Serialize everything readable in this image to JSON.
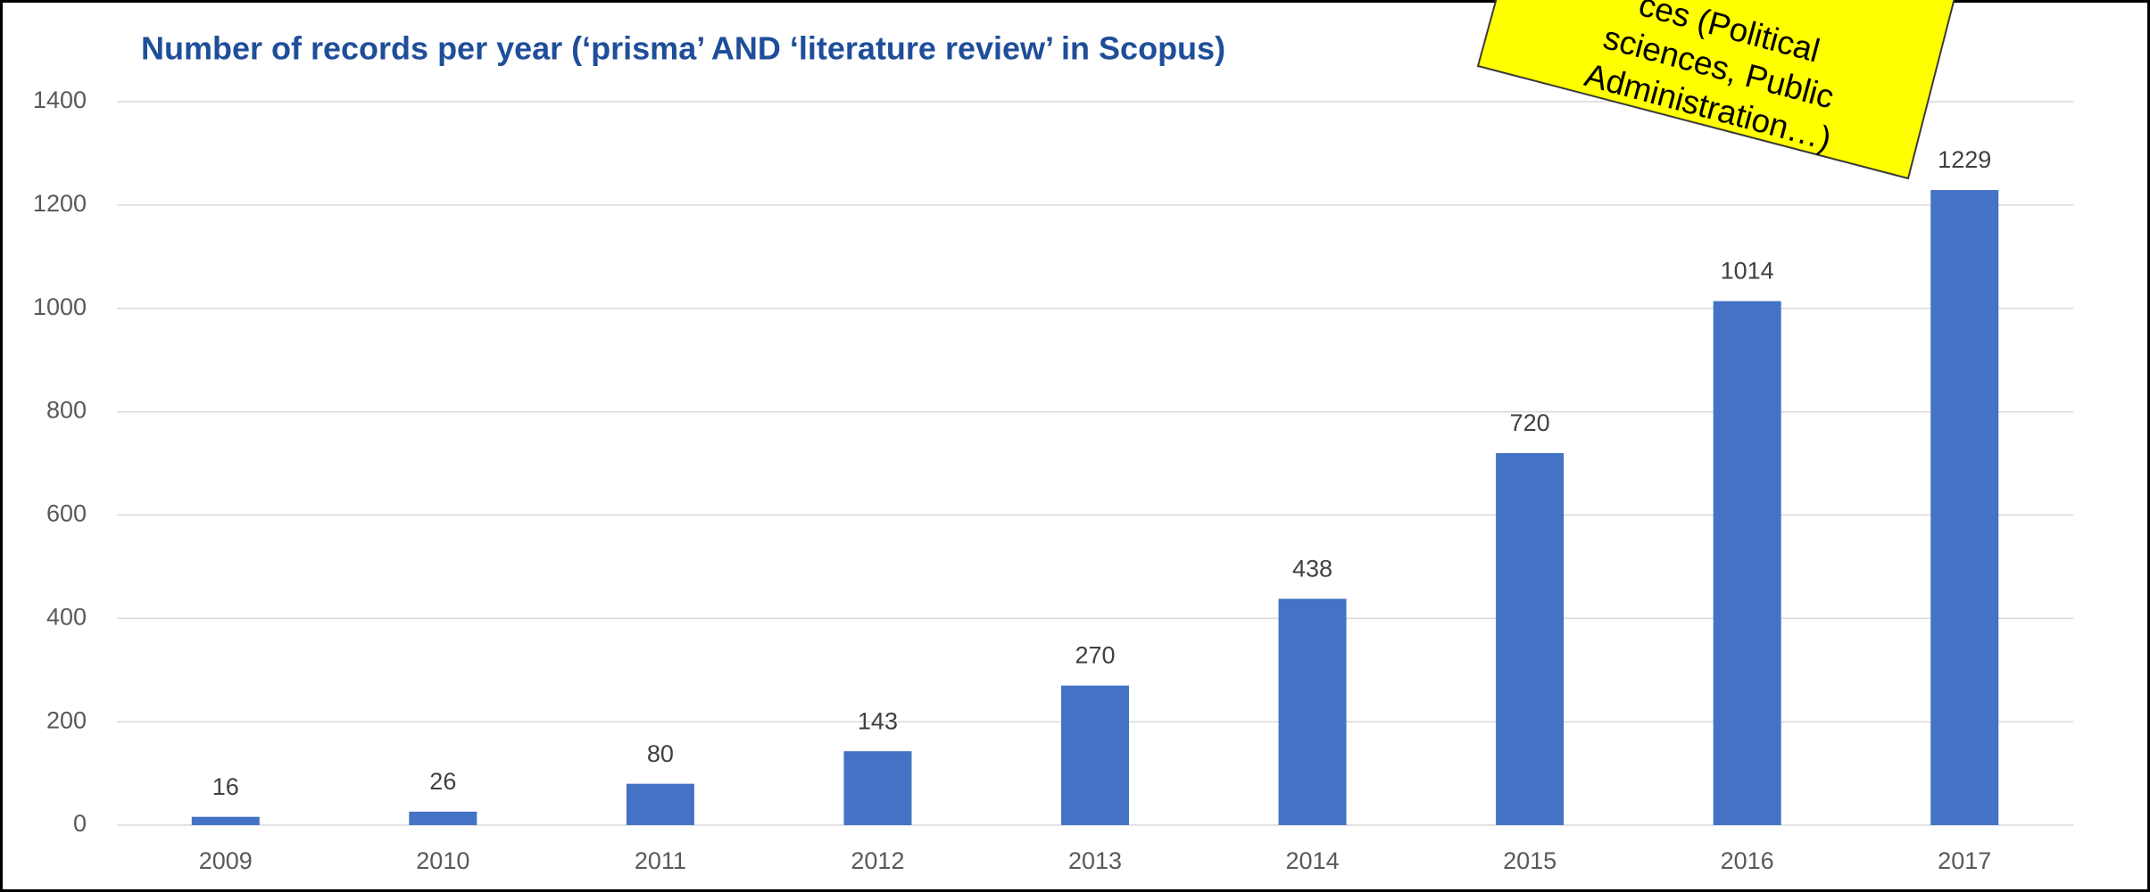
{
  "chart_data": {
    "type": "bar",
    "title": "Number of records per year (‘prisma’ AND ‘literature review’  in Scopus)",
    "categories": [
      "2009",
      "2010",
      "2011",
      "2012",
      "2013",
      "2014",
      "2015",
      "2016",
      "2017"
    ],
    "values": [
      16,
      26,
      80,
      143,
      270,
      438,
      720,
      1014,
      1229
    ],
    "color": "#4472c4",
    "ylim": [
      0,
      1400
    ],
    "yticks": [
      0,
      200,
      400,
      600,
      800,
      1000,
      1200,
      1400
    ],
    "grid": true,
    "annotation": [
      "ces  (Political",
      "sciences, Public",
      "Administration…)"
    ]
  }
}
